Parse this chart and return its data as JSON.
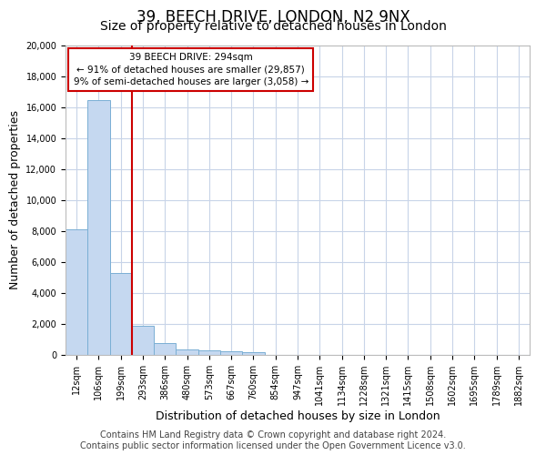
{
  "title": "39, BEECH DRIVE, LONDON, N2 9NX",
  "subtitle": "Size of property relative to detached houses in London",
  "xlabel": "Distribution of detached houses by size in London",
  "ylabel": "Number of detached properties",
  "bar_color": "#c5d8f0",
  "bar_edge_color": "#7aafd4",
  "vline_color": "#cc0000",
  "annotation_line1": "39 BEECH DRIVE: 294sqm",
  "annotation_line2": "← 91% of detached houses are smaller (29,857)",
  "annotation_line3": "9% of semi-detached houses are larger (3,058) →",
  "categories": [
    "12sqm",
    "106sqm",
    "199sqm",
    "293sqm",
    "386sqm",
    "480sqm",
    "573sqm",
    "667sqm",
    "760sqm",
    "854sqm",
    "947sqm",
    "1041sqm",
    "1134sqm",
    "1228sqm",
    "1321sqm",
    "1415sqm",
    "1508sqm",
    "1602sqm",
    "1695sqm",
    "1789sqm",
    "1882sqm"
  ],
  "values": [
    8100,
    16500,
    5300,
    1900,
    750,
    350,
    280,
    220,
    200,
    0,
    0,
    0,
    0,
    0,
    0,
    0,
    0,
    0,
    0,
    0,
    0
  ],
  "ylim": [
    0,
    20000
  ],
  "yticks": [
    0,
    2000,
    4000,
    6000,
    8000,
    10000,
    12000,
    14000,
    16000,
    18000,
    20000
  ],
  "vline_x_index": 2.5,
  "footer_line1": "Contains HM Land Registry data © Crown copyright and database right 2024.",
  "footer_line2": "Contains public sector information licensed under the Open Government Licence v3.0.",
  "background_color": "#ffffff",
  "plot_bg_color": "#ffffff",
  "grid_color": "#c8d4e8",
  "title_fontsize": 12,
  "subtitle_fontsize": 10,
  "axis_label_fontsize": 9,
  "tick_fontsize": 7,
  "footer_fontsize": 7
}
